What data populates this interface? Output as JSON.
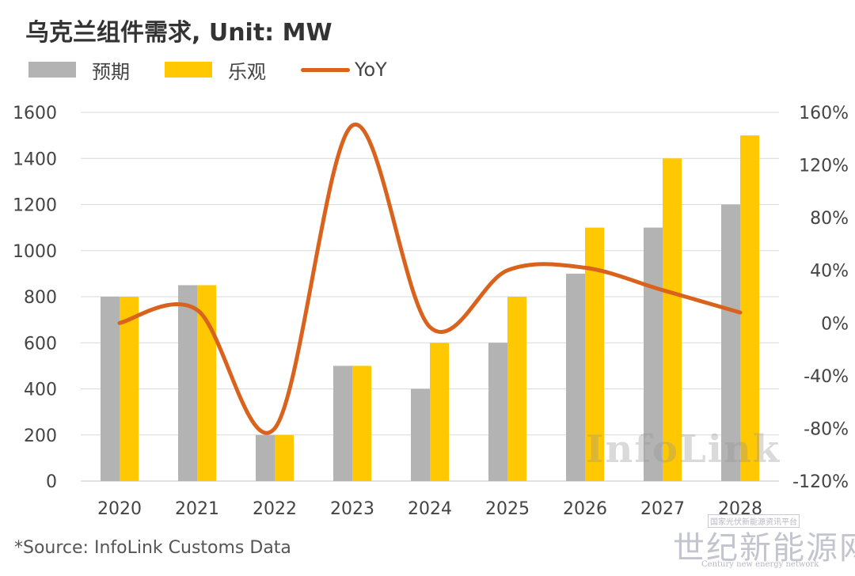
{
  "title": "乌克兰组件需求, Unit: MW",
  "source": "*Source: InfoLink Customs Data",
  "watermark": "InfoLink",
  "site_logo": {
    "tag": "国家光伏新能源资讯平台",
    "name": "世纪新能源网",
    "english": "Century new energy network"
  },
  "colors": {
    "forecast_bar": "#b3b3b3",
    "optimistic_bar": "#ffc800",
    "yoy_line": "#d9631c",
    "grid": "#d9d9d9"
  },
  "chart_data": {
    "type": "bar",
    "title": "乌克兰组件需求, Unit: MW",
    "categories": [
      "2020",
      "2021",
      "2022",
      "2023",
      "2024",
      "2025",
      "2026",
      "2027",
      "2028"
    ],
    "series": [
      {
        "name": "预期",
        "type": "bar",
        "axis": "left",
        "values": [
          800,
          850,
          200,
          500,
          400,
          600,
          900,
          1100,
          1200
        ]
      },
      {
        "name": "乐观",
        "type": "bar",
        "axis": "left",
        "values": [
          800,
          850,
          200,
          500,
          600,
          800,
          1100,
          1400,
          1500
        ]
      },
      {
        "name": "YoY",
        "type": "line",
        "axis": "right",
        "values": [
          0,
          10,
          -80,
          150,
          -3,
          40,
          42,
          25,
          8
        ]
      }
    ],
    "y_left": {
      "min": 0,
      "max": 1600,
      "ticks": [
        0,
        200,
        400,
        600,
        800,
        1000,
        1200,
        1400,
        1600
      ],
      "tick_labels": [
        "0",
        "200",
        "400",
        "600",
        "800",
        "1000",
        "1200",
        "1400",
        "1600"
      ]
    },
    "y_right": {
      "min": -120,
      "max": 160,
      "ticks": [
        -120,
        -80,
        -40,
        0,
        40,
        80,
        120,
        160
      ],
      "tick_labels": [
        "-120%",
        "-80%",
        "-40%",
        "0%",
        "40%",
        "80%",
        "120%",
        "160%"
      ]
    },
    "grid": true,
    "legend_position": "top-left"
  }
}
